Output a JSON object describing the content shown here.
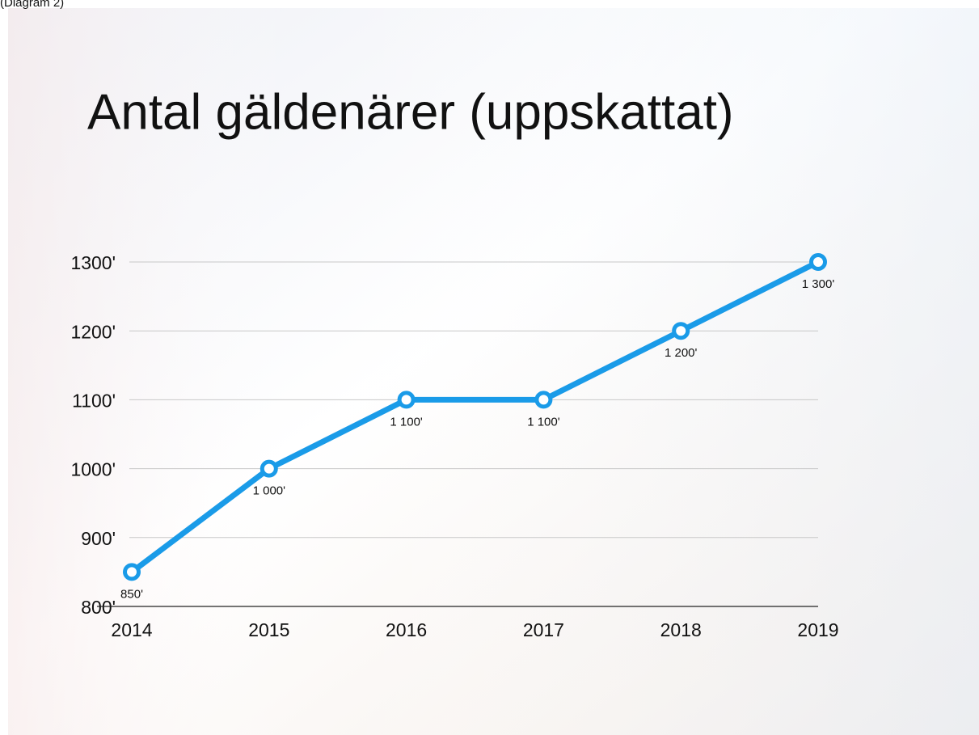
{
  "caption": "(Diagram 2)",
  "chart_data": {
    "type": "line",
    "title": "Antal gäldenärer (uppskattat)",
    "categories": [
      "2014",
      "2015",
      "2016",
      "2017",
      "2018",
      "2019"
    ],
    "series": [
      {
        "name": "Antal gäldenärer",
        "color": "#1a9be8",
        "values": [
          850,
          1000,
          1100,
          1100,
          1200,
          1300
        ],
        "value_labels": [
          "850'",
          "1 000'",
          "1 100'",
          "1 100'",
          "1 200'",
          "1 300'"
        ]
      }
    ],
    "ylim": [
      800,
      1300
    ],
    "yticks": [
      {
        "value": 800,
        "label": "800'"
      },
      {
        "value": 900,
        "label": "900'"
      },
      {
        "value": 1000,
        "label": "1000'"
      },
      {
        "value": 1100,
        "label": "1100'"
      },
      {
        "value": 1200,
        "label": "1200'"
      },
      {
        "value": 1300,
        "label": "1300'"
      }
    ],
    "grid": true
  }
}
